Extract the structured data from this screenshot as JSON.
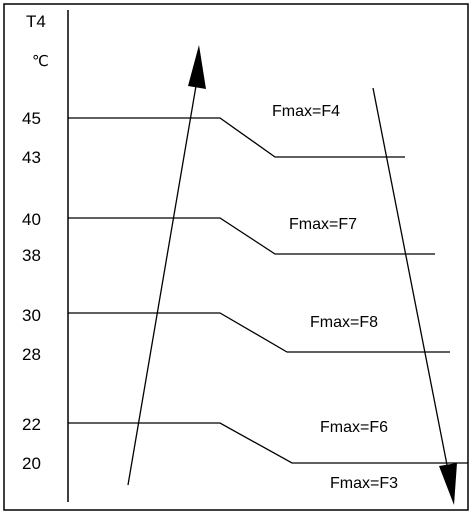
{
  "axis": {
    "title": "T4",
    "unit": "℃"
  },
  "ticks": [
    "45",
    "43",
    "40",
    "38",
    "30",
    "28",
    "22",
    "20"
  ],
  "zones": [
    "Fmax=F4",
    "Fmax=F7",
    "Fmax=F8",
    "Fmax=F6",
    "Fmax=F3"
  ],
  "colors": {
    "line": "#000000",
    "background": "#ffffff"
  },
  "arrows": {
    "rising": "arrow-up",
    "falling": "arrow-down"
  }
}
